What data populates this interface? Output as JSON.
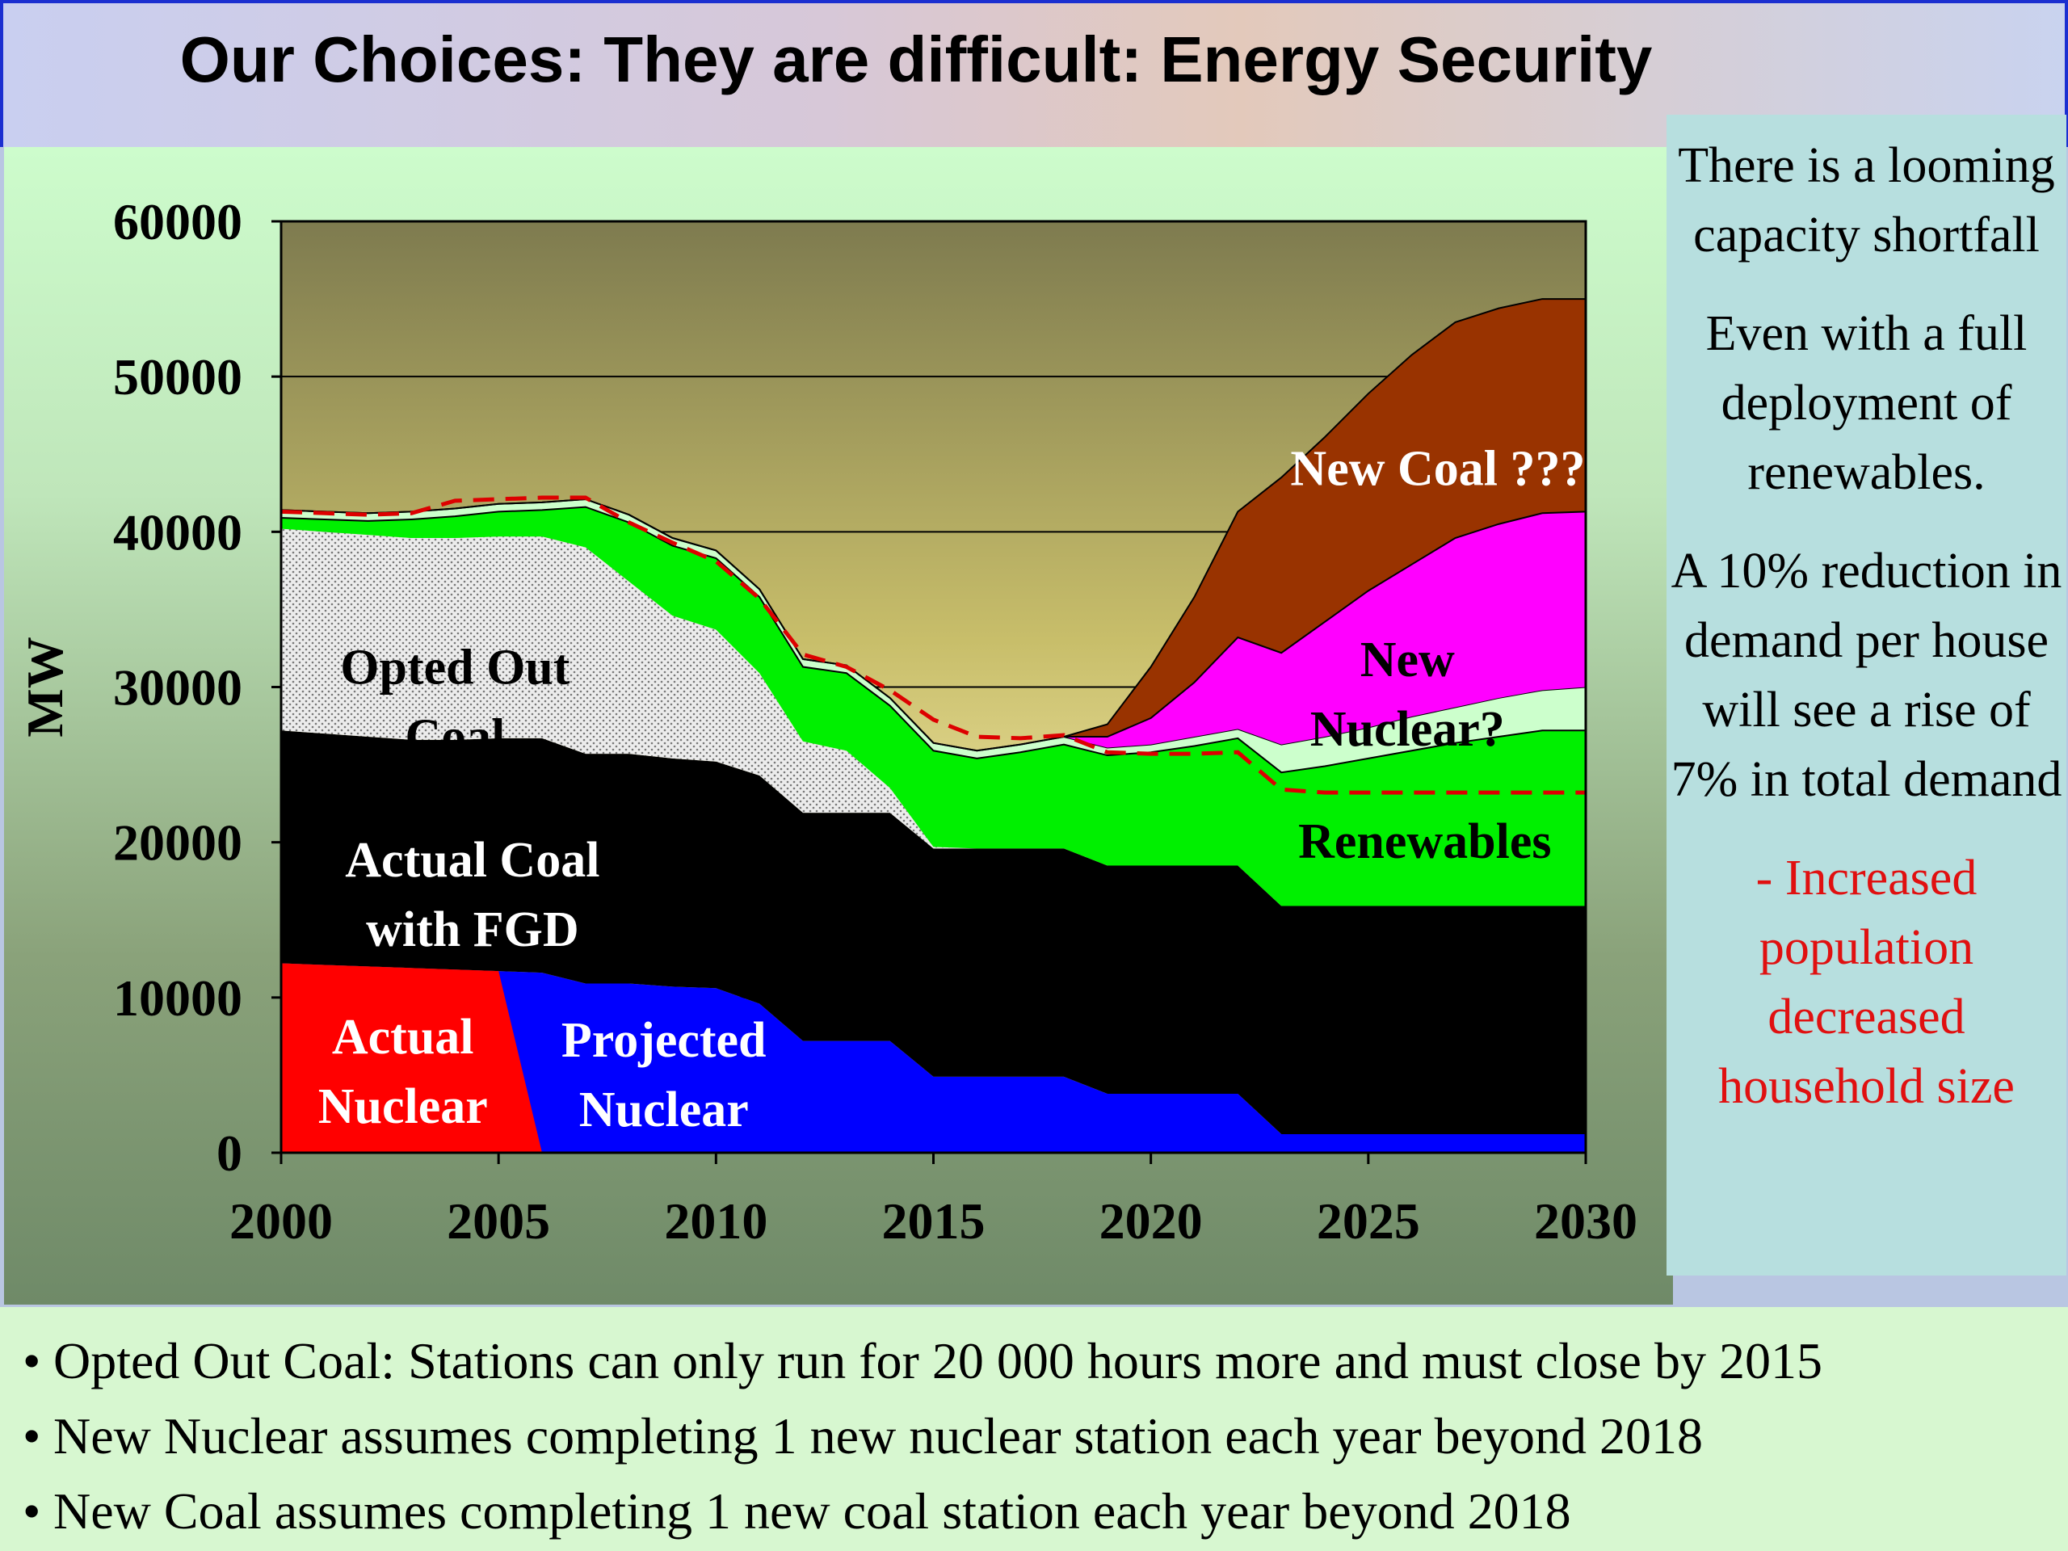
{
  "title": "Our Choices: They are difficult:  Energy Security",
  "chart_data": {
    "type": "area",
    "stacked": true,
    "xlim": [
      2000,
      2030
    ],
    "ylim": [
      0,
      60000
    ],
    "x_ticks": [
      "2000",
      "2005",
      "2010",
      "2015",
      "2020",
      "2025",
      "2030"
    ],
    "y_ticks": [
      "0",
      "10000",
      "20000",
      "30000",
      "40000",
      "50000",
      "60000"
    ],
    "ylabel": "MW",
    "xlabel": "",
    "grid": "horizontal",
    "x": [
      2000,
      2001,
      2002,
      2003,
      2004,
      2005,
      2006,
      2007,
      2008,
      2009,
      2010,
      2011,
      2012,
      2013,
      2014,
      2015,
      2016,
      2017,
      2018,
      2019,
      2020,
      2021,
      2022,
      2023,
      2024,
      2025,
      2026,
      2027,
      2028,
      2029,
      2030
    ],
    "series": [
      {
        "key": "nuclear",
        "color": "#0000ff",
        "values": [
          12200,
          12100,
          12000,
          11900,
          11800,
          11700,
          11600,
          10900,
          10900,
          10700,
          10600,
          9600,
          7200,
          7200,
          7200,
          4900,
          4900,
          4900,
          4900,
          3800,
          3800,
          3800,
          3800,
          1200,
          1200,
          1200,
          1200,
          1200,
          1200,
          1200,
          1200
        ]
      },
      {
        "key": "coal_fgd",
        "color": "#000000",
        "values": [
          15000,
          14900,
          14800,
          14700,
          14800,
          15000,
          15100,
          14800,
          14800,
          14700,
          14600,
          14700,
          14700,
          14700,
          14700,
          14700,
          14700,
          14700,
          14700,
          14700,
          14700,
          14700,
          14700,
          14700,
          14700,
          14700,
          14700,
          14700,
          14700,
          14700,
          14700
        ]
      },
      {
        "key": "opted_out",
        "color": "#d6d6d6",
        "values": [
          13000,
          13000,
          13000,
          13000,
          13000,
          13000,
          13000,
          13300,
          11100,
          9200,
          8500,
          6600,
          4600,
          4000,
          1600,
          100,
          0,
          0,
          0,
          0,
          0,
          0,
          0,
          0,
          0,
          0,
          0,
          0,
          0,
          0,
          0
        ]
      },
      {
        "key": "renewables",
        "color": "#00f000",
        "values": [
          700,
          800,
          900,
          1200,
          1400,
          1600,
          1700,
          2600,
          3800,
          4500,
          4600,
          4900,
          4800,
          5000,
          5300,
          6200,
          5800,
          6200,
          6700,
          7100,
          7300,
          7700,
          8200,
          8600,
          9000,
          9500,
          10000,
          10500,
          10900,
          11300,
          11300
        ]
      },
      {
        "key": "gap",
        "color": "#ccffcc",
        "values": [
          500,
          500,
          500,
          500,
          500,
          500,
          500,
          500,
          500,
          500,
          500,
          500,
          500,
          500,
          500,
          500,
          500,
          500,
          500,
          500,
          500,
          600,
          600,
          1800,
          1900,
          2000,
          2200,
          2300,
          2500,
          2600,
          2800
        ]
      },
      {
        "key": "new_nuclear",
        "color": "#ff00ff",
        "values": [
          0,
          0,
          0,
          0,
          0,
          0,
          0,
          0,
          0,
          0,
          0,
          0,
          0,
          0,
          0,
          0,
          0,
          0,
          0,
          700,
          1700,
          3500,
          5900,
          5900,
          7400,
          8800,
          9800,
          10900,
          11200,
          11400,
          11300
        ]
      },
      {
        "key": "new_coal",
        "color": "#993300",
        "values": [
          0,
          0,
          0,
          0,
          0,
          0,
          0,
          0,
          0,
          0,
          0,
          0,
          0,
          0,
          0,
          0,
          0,
          0,
          0,
          800,
          3300,
          5500,
          8100,
          11300,
          11900,
          12700,
          13500,
          13900,
          13900,
          13800,
          13700
        ]
      }
    ],
    "demand_line": {
      "color": "#dd0000",
      "style": "dashed",
      "values": [
        41300,
        41200,
        41100,
        41200,
        42000,
        42100,
        42200,
        42200,
        40600,
        39300,
        38100,
        35700,
        32100,
        31300,
        29800,
        27900,
        26800,
        26700,
        26900,
        25800,
        25700,
        25700,
        25800,
        23400,
        23200,
        23200,
        23200,
        23200,
        23200,
        23200,
        23200
      ]
    },
    "labels": {
      "opted_out": "Opted Out\nCoal",
      "coal_fgd": "Actual Coal\nwith FGD",
      "actual_nuclear": "Actual\nNuclear",
      "projected_nuclear": "Projected\nNuclear",
      "renewables": "Renewables",
      "new_nuclear": "New\nNuclear?",
      "new_coal": "New Coal ???"
    }
  },
  "side": {
    "p1": "There is a looming capacity shortfall",
    "p2": "Even with a full deployment of renewables.",
    "p3": "A 10% reduction in demand per house will see a rise of 7% in total demand",
    "p4": "-  Increased population decreased household size"
  },
  "bullets": [
    "Opted Out Coal: Stations can only run for 20 000 hours more and must close by 2015",
    "New Nuclear assumes completing 1 new nuclear station each year beyond 2018",
    "New Coal assumes completing 1 new coal station each year beyond 2018"
  ]
}
